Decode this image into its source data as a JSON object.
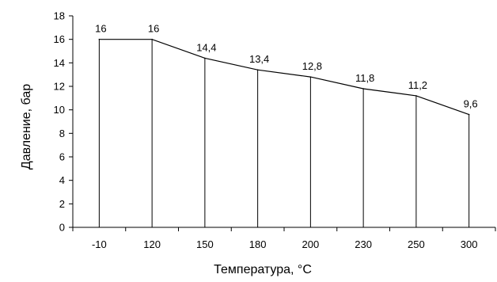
{
  "chart_data": {
    "type": "line",
    "title": "",
    "xlabel": "Температура, °C",
    "ylabel": "Давление, бар",
    "categories": [
      "-10",
      "120",
      "150",
      "180",
      "200",
      "230",
      "250",
      "300"
    ],
    "values": [
      16,
      16,
      14.4,
      13.4,
      12.8,
      11.8,
      11.2,
      9.6
    ],
    "data_labels": [
      "16",
      "16",
      "14,4",
      "13,4",
      "12,8",
      "11,8",
      "11,2",
      "9,6"
    ],
    "ylim": [
      0,
      18
    ],
    "yticks": [
      "0",
      "2",
      "4",
      "6",
      "8",
      "10",
      "12",
      "14",
      "16",
      "18"
    ],
    "drop_lines": true,
    "grid": false,
    "line_color": "#000000"
  }
}
